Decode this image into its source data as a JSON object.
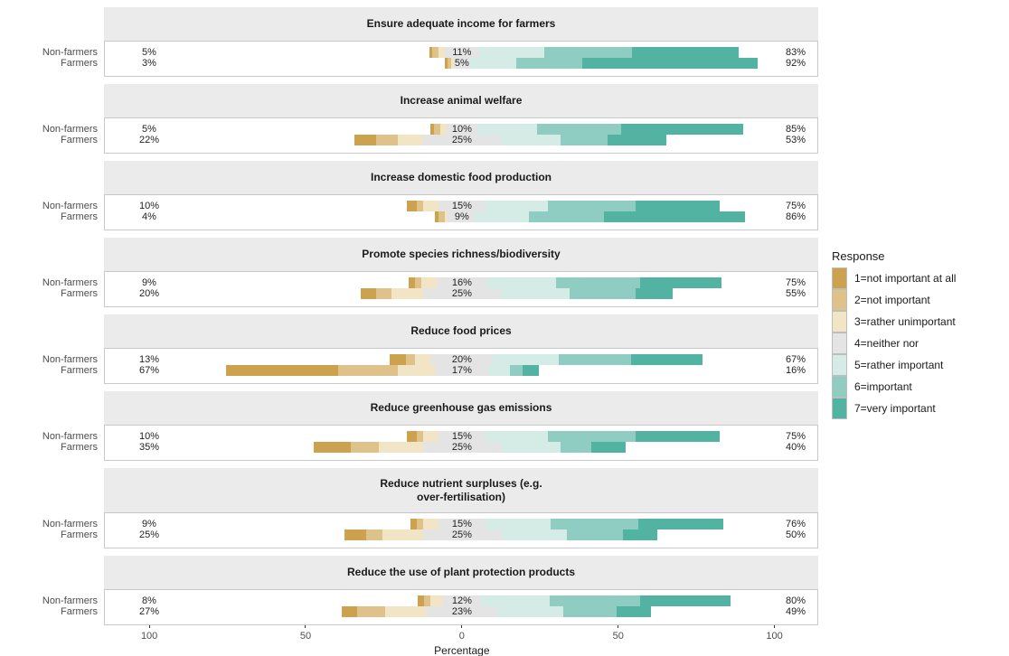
{
  "legend": {
    "title": "Response",
    "items": [
      {
        "label": "1=not important at all",
        "color": "#cda24f"
      },
      {
        "label": "2=not important",
        "color": "#dec289"
      },
      {
        "label": "3=rather unimportant",
        "color": "#f2e5c6"
      },
      {
        "label": "4=neither nor",
        "color": "#e4e4e4"
      },
      {
        "label": "5=rather important",
        "color": "#d4ebe6"
      },
      {
        "label": "6=important",
        "color": "#8fccc1"
      },
      {
        "label": "7=very important",
        "color": "#53b3a3"
      }
    ]
  },
  "chart_data": {
    "type": "bar",
    "subtype": "diverging_stacked_bar_likert",
    "xlabel": "Percentage",
    "x_ticks_pct": [
      -100,
      -50,
      0,
      50,
      100
    ],
    "x_tick_labels": [
      "100",
      "50",
      "0",
      "50",
      "100"
    ],
    "x_domain_pct": [
      -114.5,
      114
    ],
    "neutral_category_centered_on_zero": true,
    "groups": [
      "Non-farmers",
      "Farmers"
    ],
    "response_categories": [
      "1=not important at all",
      "2=not important",
      "3=rather unimportant",
      "4=neither nor",
      "5=rather important",
      "6=important",
      "7=very important"
    ],
    "palette": [
      "#cda24f",
      "#dec289",
      "#f2e5c6",
      "#e4e4e4",
      "#d4ebe6",
      "#8fccc1",
      "#53b3a3"
    ],
    "panels": [
      {
        "title": "Ensure adequate income for farmers",
        "rows": [
          {
            "group": "Non-farmers",
            "left_label": "5%",
            "center_label": "11%",
            "right_label": "83%",
            "values_pct": [
              1,
              2,
              2,
              11,
              21,
              28,
              34
            ]
          },
          {
            "group": "Farmers",
            "left_label": "3%",
            "center_label": "5%",
            "right_label": "92%",
            "values_pct": [
              1,
              1,
              1,
              5,
              15,
              21,
              56
            ]
          }
        ]
      },
      {
        "title": "Increase animal welfare",
        "rows": [
          {
            "group": "Non-farmers",
            "left_label": "5%",
            "center_label": "10%",
            "right_label": "85%",
            "values_pct": [
              1,
              2,
              2,
              10,
              19,
              27,
              39
            ]
          },
          {
            "group": "Farmers",
            "left_label": "22%",
            "center_label": "25%",
            "right_label": "53%",
            "values_pct": [
              7,
              7,
              8,
              25,
              19,
              15,
              19
            ]
          }
        ]
      },
      {
        "title": "Increase domestic food production",
        "rows": [
          {
            "group": "Non-farmers",
            "left_label": "10%",
            "center_label": "15%",
            "right_label": "75%",
            "values_pct": [
              3,
              2,
              5,
              15,
              20,
              28,
              27
            ]
          },
          {
            "group": "Farmers",
            "left_label": "4%",
            "center_label": "9%",
            "right_label": "86%",
            "values_pct": [
              1,
              2,
              1,
              9,
              17,
              24,
              45
            ]
          }
        ]
      },
      {
        "title": "Promote species richness/biodiversity",
        "rows": [
          {
            "group": "Non-farmers",
            "left_label": "9%",
            "center_label": "16%",
            "right_label": "75%",
            "values_pct": [
              2,
              2,
              5,
              16,
              22,
              27,
              26
            ]
          },
          {
            "group": "Farmers",
            "left_label": "20%",
            "center_label": "25%",
            "right_label": "55%",
            "values_pct": [
              5,
              5,
              10,
              25,
              22,
              21,
              12
            ]
          }
        ]
      },
      {
        "title": "Reduce food prices",
        "rows": [
          {
            "group": "Non-farmers",
            "left_label": "13%",
            "center_label": "20%",
            "right_label": "67%",
            "values_pct": [
              5,
              3,
              5,
              20,
              21,
              23,
              23
            ]
          },
          {
            "group": "Farmers",
            "left_label": "67%",
            "center_label": "17%",
            "right_label": "16%",
            "values_pct": [
              36,
              19,
              12,
              17,
              7,
              4,
              5
            ]
          }
        ]
      },
      {
        "title": "Reduce greenhouse gas emissions",
        "rows": [
          {
            "group": "Non-farmers",
            "left_label": "10%",
            "center_label": "15%",
            "right_label": "75%",
            "values_pct": [
              3,
              2,
              5,
              15,
              20,
              28,
              27
            ]
          },
          {
            "group": "Farmers",
            "left_label": "35%",
            "center_label": "25%",
            "right_label": "40%",
            "values_pct": [
              12,
              9,
              14,
              25,
              19,
              10,
              11
            ]
          }
        ]
      },
      {
        "title": "Reduce nutrient surpluses (e.g.\nover-fertilisation)",
        "rows": [
          {
            "group": "Non-farmers",
            "left_label": "9%",
            "center_label": "15%",
            "right_label": "76%",
            "values_pct": [
              2,
              2,
              5,
              15,
              21,
              28,
              27
            ]
          },
          {
            "group": "Farmers",
            "left_label": "25%",
            "center_label": "25%",
            "right_label": "50%",
            "values_pct": [
              7,
              5,
              13,
              25,
              21,
              18,
              11
            ]
          }
        ]
      },
      {
        "title": "Reduce the use of plant protection products",
        "rows": [
          {
            "group": "Non-farmers",
            "left_label": "8%",
            "center_label": "12%",
            "right_label": "80%",
            "values_pct": [
              2,
              2,
              4,
              12,
              22,
              29,
              29
            ]
          },
          {
            "group": "Farmers",
            "left_label": "27%",
            "center_label": "23%",
            "right_label": "49%",
            "values_pct": [
              5,
              9,
              13,
              23,
              21,
              17,
              11
            ]
          }
        ]
      }
    ]
  }
}
